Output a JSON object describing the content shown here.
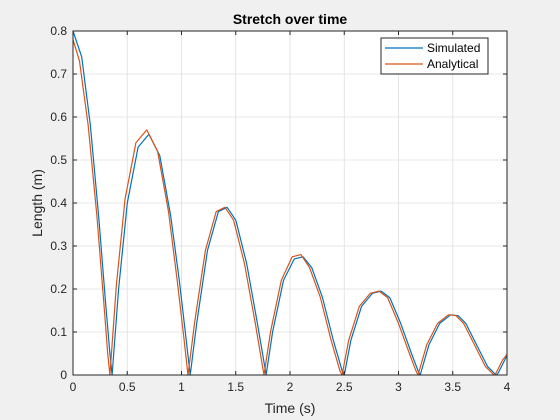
{
  "chart_data": {
    "type": "line",
    "title": "Stretch over time",
    "xlabel": "Time (s)",
    "ylabel": "Length (m)",
    "xlim": [
      0,
      4
    ],
    "ylim": [
      0,
      0.8
    ],
    "xticks": [
      0,
      0.5,
      1,
      1.5,
      2,
      2.5,
      3,
      3.5,
      4
    ],
    "xtick_labels": [
      "0",
      "0.5",
      "1",
      "1.5",
      "2",
      "2.5",
      "3",
      "3.5",
      "4"
    ],
    "yticks": [
      0,
      0.1,
      0.2,
      0.3,
      0.4,
      0.5,
      0.6,
      0.7,
      0.8
    ],
    "ytick_labels": [
      "0",
      "0.1",
      "0.2",
      "0.3",
      "0.4",
      "0.5",
      "0.6",
      "0.7",
      "0.8"
    ],
    "grid": true,
    "legend_position": "top-right",
    "series": [
      {
        "name": "Simulated",
        "color": "#0072bd",
        "x": [
          0,
          0.08,
          0.16,
          0.24,
          0.3,
          0.34,
          0.36,
          0.42,
          0.5,
          0.6,
          0.7,
          0.8,
          0.9,
          0.98,
          1.04,
          1.08,
          1.14,
          1.24,
          1.34,
          1.42,
          1.5,
          1.6,
          1.7,
          1.76,
          1.78,
          1.84,
          1.94,
          2.04,
          2.12,
          2.2,
          2.3,
          2.4,
          2.48,
          2.5,
          2.56,
          2.66,
          2.76,
          2.84,
          2.92,
          3.02,
          3.12,
          3.18,
          3.2,
          3.28,
          3.38,
          3.48,
          3.55,
          3.62,
          3.72,
          3.82,
          3.9,
          3.92,
          3.98,
          4.0
        ],
        "y": [
          0.8,
          0.74,
          0.58,
          0.36,
          0.17,
          0.05,
          0.0,
          0.2,
          0.4,
          0.53,
          0.56,
          0.51,
          0.37,
          0.22,
          0.09,
          0.0,
          0.12,
          0.29,
          0.38,
          0.39,
          0.36,
          0.26,
          0.12,
          0.03,
          0.0,
          0.1,
          0.22,
          0.27,
          0.275,
          0.25,
          0.18,
          0.08,
          0.01,
          0.0,
          0.08,
          0.16,
          0.19,
          0.195,
          0.18,
          0.12,
          0.05,
          0.01,
          0.0,
          0.07,
          0.12,
          0.14,
          0.138,
          0.12,
          0.07,
          0.02,
          0.0,
          0.005,
          0.035,
          0.045
        ]
      },
      {
        "name": "Analytical",
        "color": "#d95319",
        "x": [
          0,
          0.06,
          0.14,
          0.22,
          0.28,
          0.32,
          0.34,
          0.4,
          0.48,
          0.58,
          0.68,
          0.78,
          0.88,
          0.96,
          1.02,
          1.06,
          1.12,
          1.22,
          1.32,
          1.4,
          1.48,
          1.58,
          1.68,
          1.74,
          1.76,
          1.82,
          1.92,
          2.02,
          2.1,
          2.18,
          2.28,
          2.38,
          2.46,
          2.48,
          2.54,
          2.64,
          2.74,
          2.82,
          2.9,
          3.0,
          3.1,
          3.16,
          3.18,
          3.26,
          3.36,
          3.46,
          3.53,
          3.6,
          3.7,
          3.8,
          3.88,
          3.9,
          3.96,
          4.0
        ],
        "y": [
          0.78,
          0.73,
          0.58,
          0.37,
          0.18,
          0.05,
          0.0,
          0.21,
          0.41,
          0.54,
          0.57,
          0.52,
          0.38,
          0.22,
          0.09,
          0.0,
          0.12,
          0.29,
          0.38,
          0.39,
          0.36,
          0.26,
          0.12,
          0.03,
          0.0,
          0.1,
          0.22,
          0.275,
          0.28,
          0.25,
          0.18,
          0.08,
          0.01,
          0.0,
          0.08,
          0.16,
          0.19,
          0.195,
          0.18,
          0.12,
          0.05,
          0.01,
          0.0,
          0.07,
          0.12,
          0.14,
          0.138,
          0.12,
          0.07,
          0.02,
          0.0,
          0.005,
          0.035,
          0.048
        ]
      }
    ]
  }
}
